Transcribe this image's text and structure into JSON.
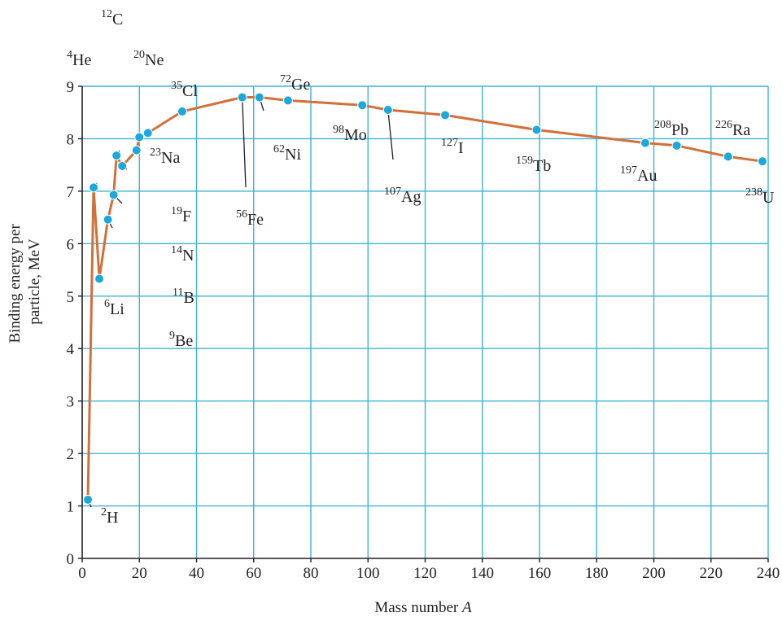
{
  "chart_data": {
    "type": "line",
    "xlabel": "Mass number A",
    "ylabel_lines": [
      "Binding energy per",
      "particle, MeV"
    ],
    "xlim": [
      0,
      240
    ],
    "ylim": [
      0,
      9
    ],
    "xticks": [
      0,
      20,
      40,
      60,
      80,
      100,
      120,
      140,
      160,
      180,
      200,
      220,
      240
    ],
    "yticks": [
      0,
      1,
      2,
      3,
      4,
      5,
      6,
      7,
      8,
      9
    ],
    "grid": true,
    "colors": {
      "line": "#d2703a",
      "marker": "#1ba8dc",
      "grid": "#3cb4d2",
      "axis": "#231f20"
    },
    "series": [
      {
        "points": [
          {
            "mass": "2",
            "symbol": "H",
            "x": 2,
            "y": 1.12
          },
          {
            "mass": "4",
            "symbol": "He",
            "x": 4,
            "y": 7.07
          },
          {
            "mass": "6",
            "symbol": "Li",
            "x": 6,
            "y": 5.33
          },
          {
            "mass": "9",
            "symbol": "Be",
            "x": 9,
            "y": 6.46
          },
          {
            "mass": "11",
            "symbol": "B",
            "x": 11,
            "y": 6.93
          },
          {
            "mass": "12",
            "symbol": "C",
            "x": 12,
            "y": 7.68
          },
          {
            "mass": "14",
            "symbol": "N",
            "x": 14,
            "y": 7.48
          },
          {
            "mass": "19",
            "symbol": "F",
            "x": 19,
            "y": 7.78
          },
          {
            "mass": "20",
            "symbol": "Ne",
            "x": 20,
            "y": 8.03
          },
          {
            "mass": "23",
            "symbol": "Na",
            "x": 23,
            "y": 8.11
          },
          {
            "mass": "35",
            "symbol": "Cl",
            "x": 35,
            "y": 8.52
          },
          {
            "mass": "56",
            "symbol": "Fe",
            "x": 56,
            "y": 8.79
          },
          {
            "mass": "62",
            "symbol": "Ni",
            "x": 62,
            "y": 8.79
          },
          {
            "mass": "72",
            "symbol": "Ge",
            "x": 72,
            "y": 8.73
          },
          {
            "mass": "98",
            "symbol": "Mo",
            "x": 98,
            "y": 8.64
          },
          {
            "mass": "107",
            "symbol": "Ag",
            "x": 107,
            "y": 8.55
          },
          {
            "mass": "127",
            "symbol": "I",
            "x": 127,
            "y": 8.45
          },
          {
            "mass": "159",
            "symbol": "Tb",
            "x": 159,
            "y": 8.17
          },
          {
            "mass": "197",
            "symbol": "Au",
            "x": 197,
            "y": 7.92
          },
          {
            "mass": "208",
            "symbol": "Pb",
            "x": 208,
            "y": 7.87
          },
          {
            "mass": "226",
            "symbol": "Ra",
            "x": 226,
            "y": 7.66
          },
          {
            "mass": "238",
            "symbol": "U",
            "x": 238,
            "y": 7.57
          }
        ]
      }
    ]
  }
}
